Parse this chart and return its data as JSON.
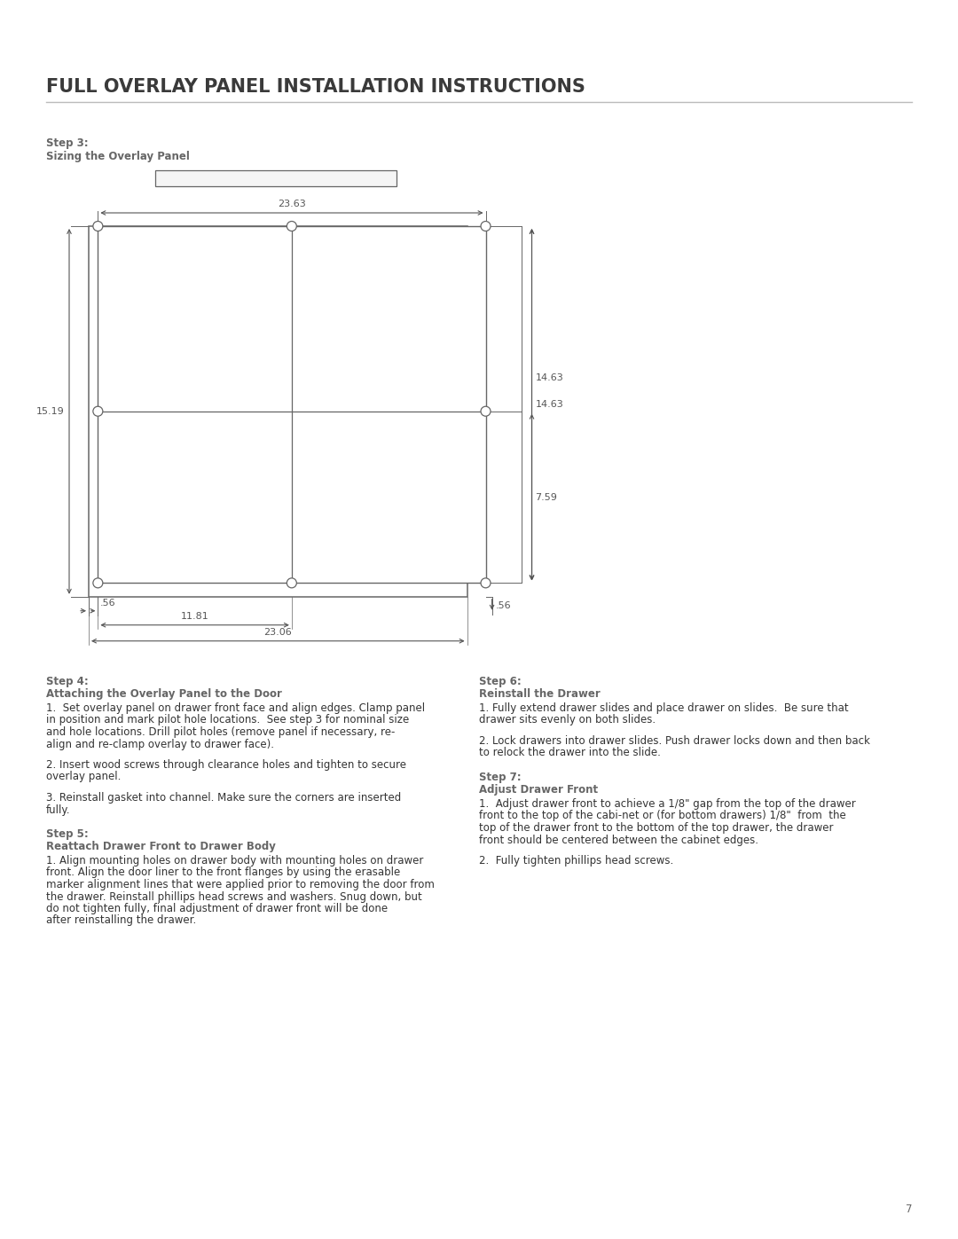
{
  "title": "FULL OVERLAY PANEL INSTALLATION INSTRUCTIONS",
  "title_fontsize": 15,
  "title_color": "#3a3a3a",
  "title_underline_color": "#bbbbbb",
  "step3_label": "Step 3:",
  "step3_sublabel": "Sizing the Overlay Panel",
  "bg_color": "#ffffff",
  "text_color": "#666666",
  "dim_color": "#555555",
  "line_color": "#666666",
  "page_number": "7",
  "step4_title": "Step 4:",
  "step4_subtitle": "Attaching the Overlay Panel to the Door",
  "step4_p1": "1.  Set overlay panel on drawer front face and align edges. Clamp panel in position and mark pilot hole locations.  See step 3 for nominal size and hole locations. Drill pilot holes (remove panel if necessary, re-align and re-clamp overlay to drawer face).",
  "step4_p2": "2. Insert wood screws through clearance holes and tighten to secure overlay panel.",
  "step4_p3": "3. Reinstall gasket into channel. Make sure the corners are inserted fully.",
  "step5_title": "Step 5:",
  "step5_subtitle": "Reattach Drawer Front to Drawer Body",
  "step5_p1": "1. Align mounting holes on drawer body with mounting holes on drawer front. Align the door liner to the front flanges by using the erasable marker alignment lines that were applied prior to removing the door from the drawer. Reinstall phillips head screws and washers. Snug down, but do not tighten fully, final adjustment of drawer front will be done after reinstalling the drawer.",
  "step6_title": "Step 6:",
  "step6_subtitle": "Reinstall the Drawer",
  "step6_p1": "1. Fully extend drawer slides and place drawer on slides.  Be sure that drawer sits evenly on both slides.",
  "step6_p2": "2. Lock drawers into drawer slides. Push drawer locks down and then back to relock the drawer into the slide.",
  "step7_title": "Step 7:",
  "step7_subtitle": "Adjust Drawer Front",
  "step7_p1": "1.  Adjust drawer front to achieve a 1/8\" gap from the top of the drawer front to the top of the cabi-net or (for bottom drawers) 1/8\"  from  the top of the drawer front to the bottom of the top drawer, the drawer front should be centered between the cabinet edges.",
  "step7_p2": "2.  Fully tighten phillips head screws.",
  "dim_23_63": "23.63",
  "dim_15_19": "15.19",
  "dim_14_63": "14.63",
  "dim_7_59": "7.59",
  "dim_0_56_left": ".56",
  "dim_11_81": "11.81",
  "dim_23_06": "23.06",
  "dim_0_56_right": ".56"
}
